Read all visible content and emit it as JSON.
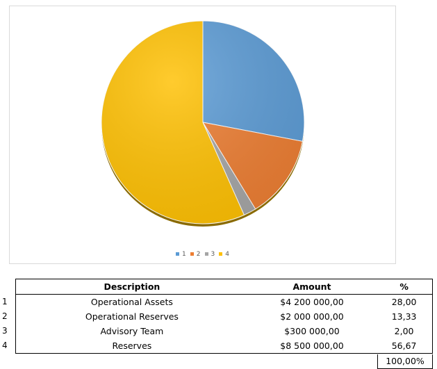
{
  "chart_data": {
    "type": "pie",
    "categories": [
      "1",
      "2",
      "3",
      "4"
    ],
    "values": [
      28.0,
      13.33,
      2.0,
      56.67
    ],
    "colors": [
      "#5b9bd5",
      "#ed7d31",
      "#a5a5a5",
      "#ffc000"
    ],
    "legend_position": "bottom",
    "title": ""
  },
  "table": {
    "headers": {
      "description": "Description",
      "amount": "Amount",
      "percent": "%"
    },
    "rows": [
      {
        "num": "1",
        "description": "Operational Assets",
        "amount": "$4 200 000,00",
        "percent": "28,00"
      },
      {
        "num": "2",
        "description": "Operational Reserves",
        "amount": "$2 000 000,00",
        "percent": "13,33"
      },
      {
        "num": "3",
        "description": "Advisory Team",
        "amount": "$300 000,00",
        "percent": "2,00"
      },
      {
        "num": "4",
        "description": "Reserves",
        "amount": "$8 500 000,00",
        "percent": "56,67"
      }
    ],
    "total_percent": "100,00%"
  }
}
